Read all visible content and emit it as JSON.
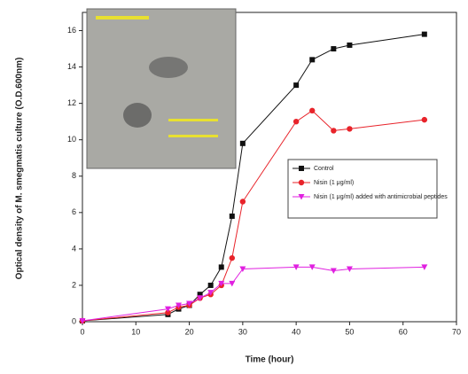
{
  "chart_data": {
    "type": "line",
    "x_label": "Time (hour)",
    "y_label": "Optical density of M. smegmatis culture (O.D.600nm)",
    "xlim": [
      0,
      70
    ],
    "xticks": [
      0,
      10,
      20,
      30,
      40,
      50,
      60,
      70
    ],
    "ylim": [
      0,
      17
    ],
    "yticks": [
      0,
      2,
      4,
      6,
      8,
      10,
      12,
      14,
      16
    ],
    "series": [
      {
        "name": "Control",
        "color": "#111111",
        "marker": "square",
        "x": [
          0,
          16,
          18,
          20,
          22,
          24,
          26,
          28,
          30,
          40,
          43,
          47,
          50,
          64
        ],
        "values": [
          0.05,
          0.4,
          0.7,
          0.9,
          1.5,
          2.0,
          3.0,
          5.8,
          9.8,
          13.0,
          14.4,
          15.0,
          15.2,
          15.8
        ]
      },
      {
        "name": "Nisin (1 μg/ml)",
        "color": "#e8232a",
        "marker": "circle",
        "x": [
          0,
          16,
          18,
          20,
          22,
          24,
          26,
          28,
          30,
          40,
          43,
          47,
          50,
          64
        ],
        "values": [
          0.05,
          0.5,
          0.8,
          0.9,
          1.3,
          1.5,
          2.0,
          3.5,
          6.6,
          11.0,
          11.6,
          10.5,
          10.6,
          11.1
        ]
      },
      {
        "name": "Nisin (1 μg/ml) added with antimicrobial peptides",
        "color": "#e020e0",
        "marker": "triangle",
        "x": [
          0,
          16,
          18,
          20,
          22,
          24,
          26,
          28,
          30,
          40,
          43,
          47,
          50,
          64
        ],
        "values": [
          0.05,
          0.7,
          0.9,
          1.0,
          1.3,
          1.6,
          2.1,
          2.1,
          2.9,
          3.0,
          3.0,
          2.8,
          2.9,
          3.0
        ]
      }
    ]
  }
}
